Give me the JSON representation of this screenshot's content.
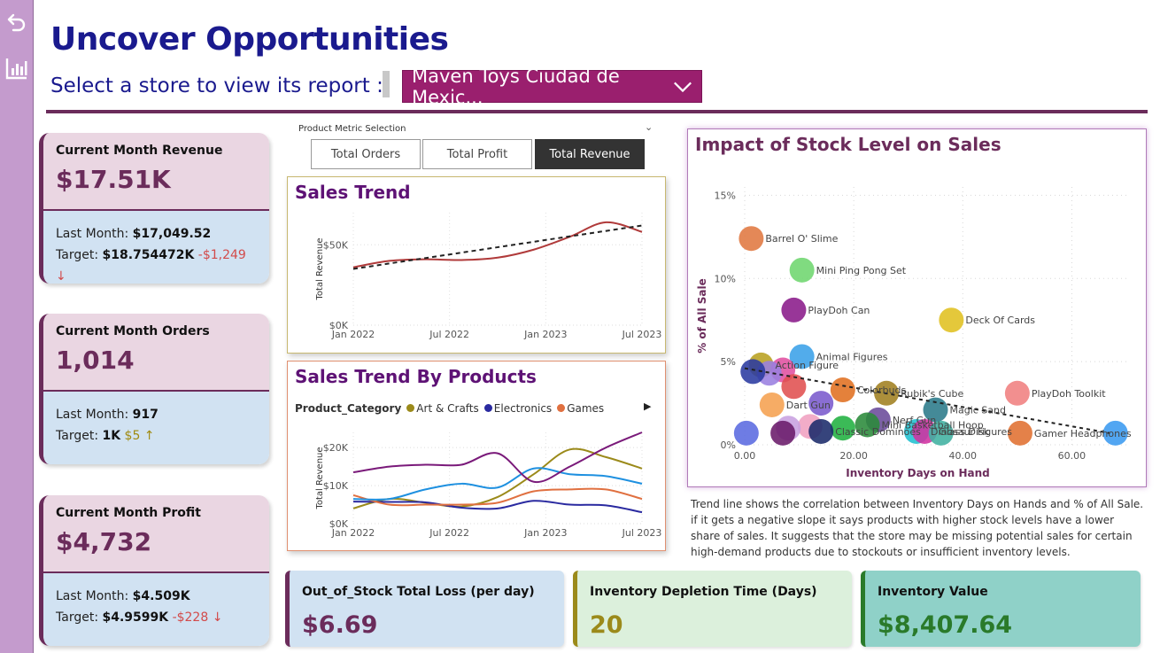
{
  "page": {
    "title": "Uncover Opportunities",
    "select_label": "Select a store to view its report :"
  },
  "store_filter": {
    "selected": "Maven Toys Ciudad de Mexic...",
    "chevron_icon": "chevron-down-icon"
  },
  "sidebar": {
    "icons": [
      "back-arrow-icon",
      "bar-chart-icon"
    ],
    "color": "#c49bcd"
  },
  "kpis": {
    "revenue": {
      "label": "Current Month Revenue",
      "value": "$17.51K",
      "last_label": "Last Month: ",
      "last_value": "$17,049.52",
      "target_label": "Target: ",
      "target_value": "$18.754472K",
      "variance": "-$1,249 ↓"
    },
    "orders": {
      "label": "Current Month Orders",
      "value": "1,014",
      "last_label": "Last Month: ",
      "last_value": "917",
      "target_label": "Target: ",
      "target_value": "1K",
      "variance": "$5 ↑"
    },
    "profit": {
      "label": "Current Month Profit",
      "value": "$4,732",
      "last_label": "Last Month: ",
      "last_value": "$4.509K",
      "target_label": "Target: ",
      "target_value": "$4.9599K",
      "variance": "-$228 ↓"
    }
  },
  "metric_selector": {
    "label": "Product Metric Selection",
    "options": [
      "Total Orders",
      "Total Profit",
      "Total Revenue"
    ],
    "active": "Total Revenue"
  },
  "colors": {
    "accent": "#6b2c5b",
    "title": "#1a1a8e",
    "chart_title": "#5e1275",
    "select_bg": "#9a1f6e"
  },
  "chart_data": [
    {
      "type": "line",
      "title": "Sales Trend",
      "ylabel": "Total Revenue",
      "x_ticks": [
        "Jan 2022",
        "Jul 2022",
        "Jan 2023",
        "Jul 2023"
      ],
      "y_ticks": [
        "$0K",
        "$50K"
      ],
      "ylim": [
        0,
        70000
      ],
      "series": [
        {
          "values": [
            36000,
            40000,
            41000,
            40500,
            42000,
            47000,
            55000,
            64000,
            58000
          ],
          "color": "#b03a3a"
        }
      ],
      "trend": {
        "values": [
          35000,
          62000
        ],
        "color": "#222222",
        "style": "dashed"
      }
    },
    {
      "type": "line",
      "title": "Sales Trend By Products",
      "ylabel": "Total Revenue",
      "legend_title": "Product_Category",
      "x_ticks": [
        "Jan 2022",
        "Jul 2022",
        "Jan 2023",
        "Jul 2023"
      ],
      "y_ticks": [
        "$0K",
        "$10K",
        "$20K"
      ],
      "ylim": [
        0,
        24000
      ],
      "series": [
        {
          "name": "Art & Crafts",
          "color": "#9b8a1a",
          "values": [
            4000,
            6500,
            5500,
            4500,
            7000,
            13000,
            19500,
            17500,
            14500
          ]
        },
        {
          "name": "Electronics",
          "color": "#2a2aa0",
          "values": [
            5800,
            5700,
            5600,
            4200,
            4000,
            6000,
            5000,
            4800,
            3000
          ]
        },
        {
          "name": "Games",
          "color": "#e07040",
          "values": [
            7500,
            5000,
            5000,
            5000,
            5500,
            8500,
            9000,
            9000,
            6500
          ]
        },
        {
          "color": "#1e90e0",
          "values": [
            6500,
            6500,
            9000,
            10500,
            9500,
            14500,
            13000,
            12500,
            10500
          ]
        },
        {
          "color": "#7a1a7a",
          "values": [
            13500,
            15000,
            15500,
            15500,
            18500,
            11000,
            15000,
            20000,
            24000
          ]
        }
      ]
    },
    {
      "type": "scatter",
      "title": "Impact of Stock Level on Sales",
      "xlabel": "Inventory Days on Hand",
      "ylabel": "% of All Sale",
      "xlim": [
        0,
        70
      ],
      "ylim": [
        0,
        15.5
      ],
      "x_ticks": [
        "0.00",
        "20.00",
        "40.00",
        "60.00"
      ],
      "y_ticks": [
        "0%",
        "5%",
        "10%",
        "15%"
      ],
      "points": [
        {
          "x": 1.2,
          "y": 12.4,
          "label": "Barrel O' Slime",
          "color": "#e07840"
        },
        {
          "x": 10.5,
          "y": 10.5,
          "label": "Mini Ping Pong Set",
          "color": "#6ed66e"
        },
        {
          "x": 9.0,
          "y": 8.1,
          "label": "PlayDoh Can",
          "color": "#8a1a8a"
        },
        {
          "x": 37.9,
          "y": 7.5,
          "label": "Deck Of Cards",
          "color": "#e0c020"
        },
        {
          "x": 10.5,
          "y": 5.3,
          "label": "Animal Figures",
          "color": "#3aa0e8"
        },
        {
          "x": 3.0,
          "y": 4.8,
          "label": "Action Figure",
          "color": "#b8a020"
        },
        {
          "x": 7.0,
          "y": 4.5,
          "label": "",
          "color": "#e050a0"
        },
        {
          "x": 4.5,
          "y": 4.3,
          "label": "",
          "color": "#9a80e0"
        },
        {
          "x": 1.5,
          "y": 4.4,
          "label": "",
          "color": "#2a3aa0"
        },
        {
          "x": 9.0,
          "y": 3.5,
          "label": "",
          "color": "#e05050"
        },
        {
          "x": 18.0,
          "y": 3.3,
          "label": "Colorbuds",
          "color": "#e07020"
        },
        {
          "x": 26.0,
          "y": 3.1,
          "label": "Rubik's Cube",
          "color": "#a08020"
        },
        {
          "x": 50.0,
          "y": 3.1,
          "label": "PlayDoh Toolkit",
          "color": "#f08080"
        },
        {
          "x": 35.0,
          "y": 2.1,
          "label": "Magic Sand",
          "color": "#2a7a8a"
        },
        {
          "x": 14.0,
          "y": 2.5,
          "label": "",
          "color": "#7a5acd"
        },
        {
          "x": 5.0,
          "y": 2.4,
          "label": "Dart Gun",
          "color": "#f5a050"
        },
        {
          "x": 24.5,
          "y": 1.5,
          "label": "Nerf Gun",
          "color": "#6a4a9a"
        },
        {
          "x": 18.0,
          "y": 1.0,
          "label": "",
          "color": "#20b040"
        },
        {
          "x": 22.5,
          "y": 1.2,
          "label": "Mini Basketball Hoop",
          "color": "#2a8a3a"
        },
        {
          "x": 12.0,
          "y": 1.1,
          "label": "",
          "color": "#f0a0c0"
        },
        {
          "x": 8.0,
          "y": 1.0,
          "label": "",
          "color": "#c8a0e0"
        },
        {
          "x": 14.0,
          "y": 0.8,
          "label": "Classic Dominoes",
          "color": "#1a2a6a"
        },
        {
          "x": 0.3,
          "y": 0.7,
          "label": "",
          "color": "#5a6ae0"
        },
        {
          "x": 7.0,
          "y": 0.7,
          "label": "",
          "color": "#6a1a6a"
        },
        {
          "x": 31.5,
          "y": 0.8,
          "label": "Dinosaur Figures",
          "color": "#20c0d0"
        },
        {
          "x": 33.0,
          "y": 0.8,
          "label": "Glass Disk",
          "color": "#d030a0"
        },
        {
          "x": 36.0,
          "y": 0.7,
          "label": "",
          "color": "#40b0a0"
        },
        {
          "x": 50.5,
          "y": 0.7,
          "label": "Gamer Headphones",
          "color": "#e07030"
        },
        {
          "x": 68.0,
          "y": 0.7,
          "label": "",
          "color": "#3a9af0"
        }
      ],
      "trend": {
        "from": [
          0,
          4.6
        ],
        "to": [
          67,
          0.7
        ],
        "style": "dashed"
      }
    }
  ],
  "note": "Trend line shows the correlation between Inventory Days on Hands and % of All Sale. if it gets a negative slope it says products with higher stock levels have a lower share of sales. It suggests that the store may be missing potential sales for certain high-demand products due to stockouts or insufficient inventory levels.",
  "bottom_kpis": {
    "loss": {
      "label": "Out_of_Stock Total Loss (per day)",
      "value": "$6.69",
      "bg": "#d1e2f2",
      "color": "#6b2c5b"
    },
    "depletion": {
      "label": "Inventory Depletion Time (Days)",
      "value": "20",
      "bg": "#dcf0dc",
      "color": "#9b8a1a"
    },
    "inventory": {
      "label": "Inventory Value",
      "value": "$8,407.64",
      "bg": "#8fd1c8",
      "color": "#2a7a2a"
    }
  }
}
